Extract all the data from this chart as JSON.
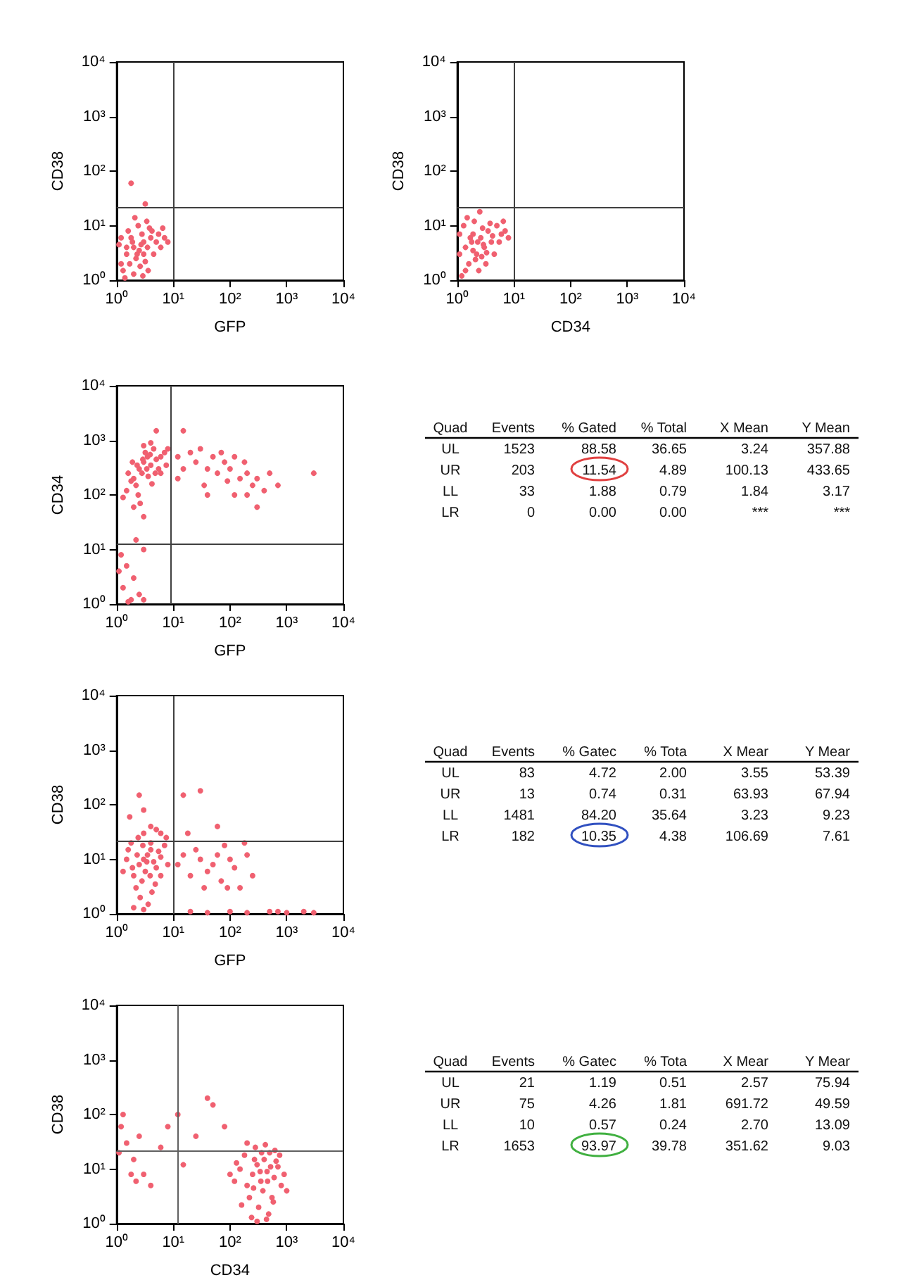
{
  "chart_data": [
    {
      "type": "scatter",
      "xlabel": "GFP",
      "ylabel": "CD38",
      "log": "xy",
      "grid": false,
      "marker": "circle",
      "color": "#f06070",
      "xlim": [
        1,
        10000
      ],
      "ylim": [
        1,
        10000
      ],
      "xticks": [
        {
          "value": 1,
          "label": "10⁰"
        },
        {
          "value": 10,
          "label": "10¹"
        },
        {
          "value": 100,
          "label": "10²"
        },
        {
          "value": 1000,
          "label": "10³"
        },
        {
          "value": 10000,
          "label": "10⁴"
        }
      ],
      "yticks": [
        {
          "value": 1,
          "label": "10⁰"
        },
        {
          "value": 10,
          "label": "10¹"
        },
        {
          "value": 100,
          "label": "10²"
        },
        {
          "value": 1000,
          "label": "10³"
        },
        {
          "value": 10000,
          "label": "10⁴"
        }
      ],
      "ref_lines": [
        {
          "axis": "x",
          "value": 10,
          "color": "#404040"
        },
        {
          "axis": "y",
          "value": 22,
          "color": "#404040"
        }
      ],
      "x": [
        1.2,
        1.5,
        2,
        2.5,
        3,
        1.8,
        2.2,
        3.5,
        4,
        1.3,
        1.6,
        2.8,
        3.2,
        4.5,
        5,
        6,
        1.1,
        2.4,
        3.8,
        1.4,
        2,
        2.6,
        5.5,
        7,
        1.9,
        2.3,
        3,
        2.7,
        1.7,
        4.2,
        3.4,
        1.2,
        6.5,
        2.1,
        8,
        1.5,
        2.9,
        3.6,
        1.8,
        3.2
      ],
      "values": [
        2,
        3,
        4,
        3.5,
        5,
        6,
        2.5,
        4,
        6,
        1.5,
        8,
        7,
        2.2,
        3,
        5,
        4,
        4.5,
        10,
        9,
        1.1,
        1.3,
        1.8,
        7,
        6,
        5,
        3,
        3,
        4.5,
        2,
        8,
        12,
        6,
        9,
        14,
        5,
        4,
        1.2,
        1.5,
        60,
        25
      ]
    },
    {
      "type": "scatter",
      "xlabel": "CD34",
      "ylabel": "CD38",
      "log": "xy",
      "grid": false,
      "marker": "circle",
      "color": "#f06070",
      "xlim": [
        1,
        10000
      ],
      "ylim": [
        1,
        10000
      ],
      "xticks": [
        {
          "value": 1,
          "label": "10⁰"
        },
        {
          "value": 10,
          "label": "10¹"
        },
        {
          "value": 100,
          "label": "10²"
        },
        {
          "value": 1000,
          "label": "10³"
        },
        {
          "value": 10000,
          "label": "10⁴"
        }
      ],
      "yticks": [
        {
          "value": 1,
          "label": "10⁰"
        },
        {
          "value": 10,
          "label": "10¹"
        },
        {
          "value": 100,
          "label": "10²"
        },
        {
          "value": 1000,
          "label": "10³"
        },
        {
          "value": 10000,
          "label": "10⁴"
        }
      ],
      "ref_lines": [
        {
          "axis": "x",
          "value": 10,
          "color": "#404040"
        },
        {
          "axis": "y",
          "value": 22,
          "color": "#404040"
        }
      ],
      "x": [
        1.1,
        1.4,
        1.8,
        2.2,
        2.6,
        3,
        3.5,
        4,
        1.3,
        2,
        5,
        6,
        1.6,
        2.4,
        3.2,
        4.5,
        1.2,
        1.9,
        2.8,
        3.8,
        7,
        1.5,
        2.1,
        2.9,
        1.7,
        2.3,
        1.1,
        5.5,
        6.5,
        3.3,
        4.2,
        1.4,
        2.5,
        8,
        1.9,
        2.7
      ],
      "values": [
        3,
        4,
        5,
        3,
        6,
        4,
        8,
        5,
        10,
        12,
        10,
        7,
        2,
        1.5,
        2,
        3,
        1.2,
        7,
        9,
        11,
        8,
        14,
        2.4,
        4.5,
        6,
        5,
        7,
        5,
        12,
        3.2,
        6.5,
        1.5,
        18,
        6,
        3.5,
        2.7
      ]
    },
    {
      "type": "scatter",
      "xlabel": "GFP",
      "ylabel": "CD34",
      "log": "xy",
      "grid": false,
      "marker": "circle",
      "color": "#f06070",
      "xlim": [
        1,
        10000
      ],
      "ylim": [
        1,
        10000
      ],
      "xticks": [
        {
          "value": 1,
          "label": "10⁰"
        },
        {
          "value": 10,
          "label": "10¹"
        },
        {
          "value": 100,
          "label": "10²"
        },
        {
          "value": 1000,
          "label": "10³"
        },
        {
          "value": 10000,
          "label": "10⁴"
        }
      ],
      "yticks": [
        {
          "value": 1,
          "label": "10⁰"
        },
        {
          "value": 10,
          "label": "10¹"
        },
        {
          "value": 100,
          "label": "10²"
        },
        {
          "value": 1000,
          "label": "10³"
        },
        {
          "value": 10000,
          "label": "10⁴"
        }
      ],
      "ref_lines": [
        {
          "axis": "x",
          "value": 9,
          "color": "#404040"
        },
        {
          "axis": "y",
          "value": 13,
          "color": "#404040"
        }
      ],
      "x": [
        2,
        2.5,
        3,
        3.5,
        4,
        2.2,
        2.8,
        3.2,
        4.5,
        5,
        6,
        1.5,
        1.8,
        2.4,
        3,
        4,
        5.5,
        7,
        2.6,
        3.6,
        4.2,
        1.3,
        2,
        3,
        5,
        6,
        8,
        7.5,
        1.6,
        2.9,
        3.9,
        4.8,
        2.3,
        3.4,
        1.9,
        12,
        15,
        20,
        25,
        30,
        40,
        50,
        60,
        70,
        80,
        100,
        120,
        150,
        200,
        250,
        300,
        400,
        500,
        700,
        3000,
        15,
        12,
        35,
        90,
        180,
        40,
        300,
        120,
        200,
        1.2,
        1.5,
        2,
        1.3,
        2.5,
        1.8,
        3,
        1.1,
        2.2,
        1.6,
        3
      ],
      "values": [
        200,
        300,
        400,
        500,
        350,
        150,
        250,
        600,
        700,
        450,
        500,
        120,
        180,
        100,
        800,
        900,
        300,
        600,
        70,
        220,
        160,
        90,
        60,
        40,
        1500,
        250,
        700,
        350,
        250,
        450,
        550,
        250,
        350,
        300,
        400,
        500,
        300,
        600,
        400,
        700,
        300,
        500,
        250,
        600,
        400,
        300,
        500,
        200,
        250,
        150,
        200,
        120,
        250,
        150,
        250,
        1500,
        200,
        150,
        180,
        400,
        100,
        60,
        100,
        100,
        8,
        5,
        3,
        2,
        1.5,
        1.2,
        10,
        4,
        15,
        1.1,
        1.2
      ]
    },
    {
      "type": "other",
      "annotations": [
        "Quad",
        "Events",
        "% Gated",
        "% Total",
        "X Mean",
        "Y Mean",
        "UL",
        "1523",
        "88.58",
        "36.65",
        "3.24",
        "357.88",
        "UR",
        "203",
        "11.54",
        "4.89",
        "100.13",
        "433.65",
        "LL",
        "33",
        "1.88",
        "0.79",
        "1.84",
        "3.17",
        "LR",
        "0",
        "0.00",
        "0.00",
        "***",
        "***"
      ],
      "colors": [
        null,
        null,
        null,
        null,
        null,
        null,
        null,
        null,
        null,
        null,
        null,
        null,
        null,
        null,
        "#e04040",
        null,
        null,
        null,
        null,
        null,
        null,
        null,
        null,
        null,
        null,
        null,
        null,
        null,
        null,
        null
      ]
    },
    {
      "type": "scatter",
      "xlabel": "GFP",
      "ylabel": "CD38",
      "log": "xy",
      "grid": false,
      "marker": "circle",
      "color": "#f06070",
      "xlim": [
        1,
        10000
      ],
      "ylim": [
        1,
        10000
      ],
      "xticks": [
        {
          "value": 1,
          "label": "10⁰"
        },
        {
          "value": 10,
          "label": "10¹"
        },
        {
          "value": 100,
          "label": "10²"
        },
        {
          "value": 1000,
          "label": "10³"
        },
        {
          "value": 10000,
          "label": "10⁴"
        }
      ],
      "yticks": [
        {
          "value": 1,
          "label": "10⁰"
        },
        {
          "value": 10,
          "label": "10¹"
        },
        {
          "value": 100,
          "label": "10²"
        },
        {
          "value": 1000,
          "label": "10³"
        },
        {
          "value": 10000,
          "label": "10⁴"
        }
      ],
      "ref_lines": [
        {
          "axis": "x",
          "value": 10,
          "color": "#404040"
        },
        {
          "axis": "y",
          "value": 22,
          "color": "#404040"
        }
      ],
      "x": [
        2,
        2.5,
        3,
        3.5,
        4,
        2.2,
        2.8,
        3.2,
        4.5,
        5,
        6,
        1.5,
        1.8,
        2.4,
        3,
        4,
        5.5,
        7,
        2.6,
        3.6,
        4.2,
        1.3,
        2,
        3,
        5,
        6,
        8,
        7.5,
        1.6,
        2.9,
        3.9,
        4.8,
        2.3,
        3.4,
        1.9,
        2.5,
        3,
        1.7,
        4,
        6,
        12,
        15,
        20,
        25,
        30,
        40,
        50,
        60,
        70,
        80,
        100,
        120,
        150,
        200,
        250,
        35,
        18,
        15,
        30,
        60,
        180,
        90,
        20,
        40,
        100,
        200,
        500,
        700,
        1000,
        2000,
        3000
      ],
      "values": [
        5,
        8,
        10,
        12,
        15,
        3,
        4,
        6,
        9,
        7,
        11,
        10,
        20,
        25,
        30,
        20,
        14,
        18,
        2,
        1.5,
        2.5,
        6,
        1.3,
        1.2,
        35,
        5,
        8,
        25,
        15,
        18,
        5,
        3.5,
        12,
        9,
        7,
        150,
        80,
        60,
        40,
        30,
        8,
        12,
        5,
        15,
        10,
        6,
        8,
        12,
        4,
        18,
        10,
        7,
        3,
        12,
        5,
        3,
        30,
        150,
        180,
        40,
        20,
        3,
        1.1,
        1.05,
        1.1,
        1.05,
        1.1,
        1.1,
        1.05,
        1.1,
        1.05
      ]
    },
    {
      "type": "other",
      "annotations": [
        "Quad",
        "Events",
        "% Gatec",
        "% Tota",
        "X Mear",
        "Y Mear",
        "UL",
        "83",
        "4.72",
        "2.00",
        "3.55",
        "53.39",
        "UR",
        "13",
        "0.74",
        "0.31",
        "63.93",
        "67.94",
        "LL",
        "1481",
        "84.20",
        "35.64",
        "3.23",
        "9.23",
        "LR",
        "182",
        "10.35",
        "4.38",
        "106.69",
        "7.61"
      ],
      "colors": [
        null,
        null,
        null,
        null,
        null,
        null,
        null,
        null,
        null,
        null,
        null,
        null,
        null,
        null,
        null,
        null,
        null,
        null,
        null,
        null,
        null,
        null,
        null,
        null,
        null,
        null,
        "#3050c0",
        null,
        null,
        null
      ]
    },
    {
      "type": "scatter",
      "xlabel": "CD34",
      "ylabel": "CD38",
      "log": "xy",
      "grid": false,
      "marker": "circle",
      "color": "#f06070",
      "xlim": [
        1,
        10000
      ],
      "ylim": [
        1,
        10000
      ],
      "xticks": [
        {
          "value": 1,
          "label": "10⁰"
        },
        {
          "value": 10,
          "label": "10¹"
        },
        {
          "value": 100,
          "label": "10²"
        },
        {
          "value": 1000,
          "label": "10³"
        },
        {
          "value": 10000,
          "label": "10⁴"
        }
      ],
      "yticks": [
        {
          "value": 1,
          "label": "10⁰"
        },
        {
          "value": 10,
          "label": "10¹"
        },
        {
          "value": 100,
          "label": "10²"
        },
        {
          "value": 1000,
          "label": "10³"
        },
        {
          "value": 10000,
          "label": "10⁴"
        }
      ],
      "ref_lines": [
        {
          "axis": "x",
          "value": 12,
          "color": "#606060"
        },
        {
          "axis": "y",
          "value": 22,
          "color": "#606060"
        }
      ],
      "x": [
        150,
        200,
        250,
        300,
        350,
        400,
        450,
        500,
        600,
        700,
        800,
        180,
        220,
        280,
        320,
        380,
        420,
        480,
        550,
        650,
        900,
        120,
        130,
        160,
        240,
        300,
        270,
        340,
        460,
        520,
        620,
        750,
        200,
        1000,
        100,
        360,
        260,
        440,
        580,
        1.2,
        1.5,
        2,
        2.5,
        3,
        4,
        1.8,
        6,
        8,
        12,
        15,
        40,
        50,
        25,
        80,
        2.2,
        1.3,
        1.1
      ],
      "values": [
        10,
        5,
        8,
        12,
        6,
        15,
        9,
        20,
        7,
        11,
        5,
        18,
        3,
        25,
        2,
        4,
        28,
        1.5,
        3,
        14,
        8,
        6,
        13,
        2.2,
        1.3,
        1.1,
        15,
        9,
        6,
        11,
        22,
        18,
        30,
        4,
        8,
        20,
        4.5,
        1.2,
        2.5,
        60,
        30,
        15,
        40,
        8,
        5,
        8,
        25,
        60,
        100,
        12,
        200,
        150,
        40,
        60,
        6,
        100,
        20
      ]
    },
    {
      "type": "other",
      "annotations": [
        "Quad",
        "Events",
        "% Gatec",
        "% Tota",
        "X Mear",
        "Y Mear",
        "UL",
        "21",
        "1.19",
        "0.51",
        "2.57",
        "75.94",
        "UR",
        "75",
        "4.26",
        "1.81",
        "691.72",
        "49.59",
        "LL",
        "10",
        "0.57",
        "0.24",
        "2.70",
        "13.09",
        "LR",
        "1653",
        "93.97",
        "39.78",
        "351.62",
        "9.03"
      ],
      "colors": [
        null,
        null,
        null,
        null,
        null,
        null,
        null,
        null,
        null,
        null,
        null,
        null,
        null,
        null,
        null,
        null,
        null,
        null,
        null,
        null,
        null,
        null,
        null,
        null,
        null,
        null,
        "#40b040",
        null,
        null,
        null
      ]
    }
  ]
}
